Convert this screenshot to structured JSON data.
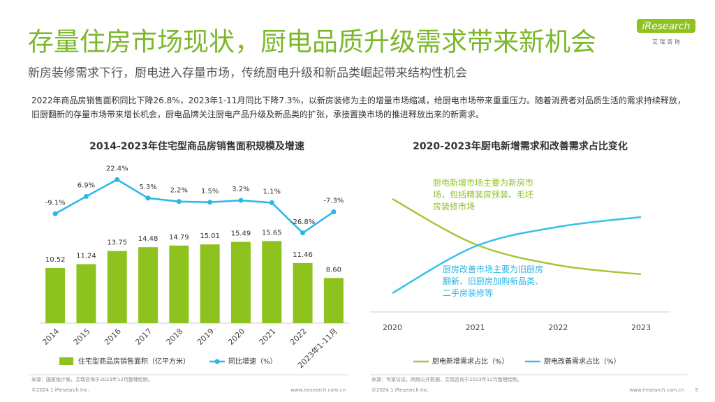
{
  "header": {
    "title": "存量住房市场现状，厨电品质升级需求带来新机会",
    "subtitle": "新房装修需求下行，厨电进入存量市场，传统厨电升级和新品类崛起带来结构性机会",
    "logo": "iResearch",
    "logo_sub": "艾 瑞 咨 询"
  },
  "body": "2022年商品房销售面积同比下降26.8%，2023年1-11月同比下降7.3%，以新房装修为主的增量市场缩减，给厨电市场带来重重压力。随着消费者对品质生活的需求持续释放，旧厨翻新的存量市场带来增长机会，厨电品牌关注厨电产品升级及新品类的扩张，承接置换市场的推进释放出来的新需求。",
  "chart_data": [
    {
      "type": "bar",
      "title": "2014-2023年住宅型商品房销售面积规模及增速",
      "categories": [
        "2014",
        "2015",
        "2016",
        "2017",
        "2018",
        "2019",
        "2020",
        "2021",
        "2022",
        "2023年1-11月"
      ],
      "ylim": [
        0,
        31
      ],
      "y2lim": [
        -110,
        40
      ],
      "series": [
        {
          "name": "住宅型商品房销售面积（亿平方米）",
          "color": "#8dc21f",
          "values": [
            10.52,
            11.24,
            13.75,
            14.48,
            14.79,
            15.01,
            15.49,
            15.65,
            11.46,
            8.6
          ],
          "value_labels": [
            "10.52",
            "11.24",
            "13.75",
            "14.48",
            "14.79",
            "15.01",
            "15.49",
            "15.65",
            "11.46",
            "8.60"
          ]
        },
        {
          "name": "同比增速（%）",
          "type": "line",
          "axis": "y2",
          "color": "#29b6e8",
          "values": [
            -9.1,
            6.9,
            22.4,
            5.3,
            2.2,
            1.5,
            3.2,
            1.1,
            -26.8,
            -7.3
          ],
          "value_labels": [
            "-9.1%",
            "6.9%",
            "22.4%",
            "5.3%",
            "2.2%",
            "1.5%",
            "3.2%",
            "1.1%",
            "-26.8%",
            "-7.3%"
          ]
        }
      ],
      "source": "来源：国家统计局，艾瑞咨询于2023年12月整理绘制。"
    },
    {
      "type": "line",
      "title": "2020-2023年厨电新增需求和改善需求占比变化",
      "categories": [
        "2020",
        "2021",
        "2022",
        "2023"
      ],
      "ylim": [
        0,
        100
      ],
      "series": [
        {
          "name": "厨电新增需求占比（%）",
          "color": "#a5c73a",
          "values": [
            82.5,
            50,
            35,
            28.5
          ]
        },
        {
          "name": "厨电改善需求占比（%）",
          "color": "#35c0ea",
          "values": [
            15,
            48.5,
            62.5,
            69.5
          ]
        }
      ],
      "annotations": [
        {
          "text": "厨电新增市场主要为新房市场，包括精装房预装、毛坯房装修市场",
          "color": "#8dc21f"
        },
        {
          "text": "厨房改善市场主要为旧厨房翻新、旧厨房加购新品类、二手房装修等",
          "color": "#29b6e8"
        }
      ],
      "source": "来源：专家访谈，网络公开数据，艾瑞咨询于2023年12月整理绘制。"
    }
  ],
  "footer": {
    "copyright": "©2024.1 iResearch Inc.",
    "website": "www.iresearch.com.cn",
    "page": "5"
  }
}
